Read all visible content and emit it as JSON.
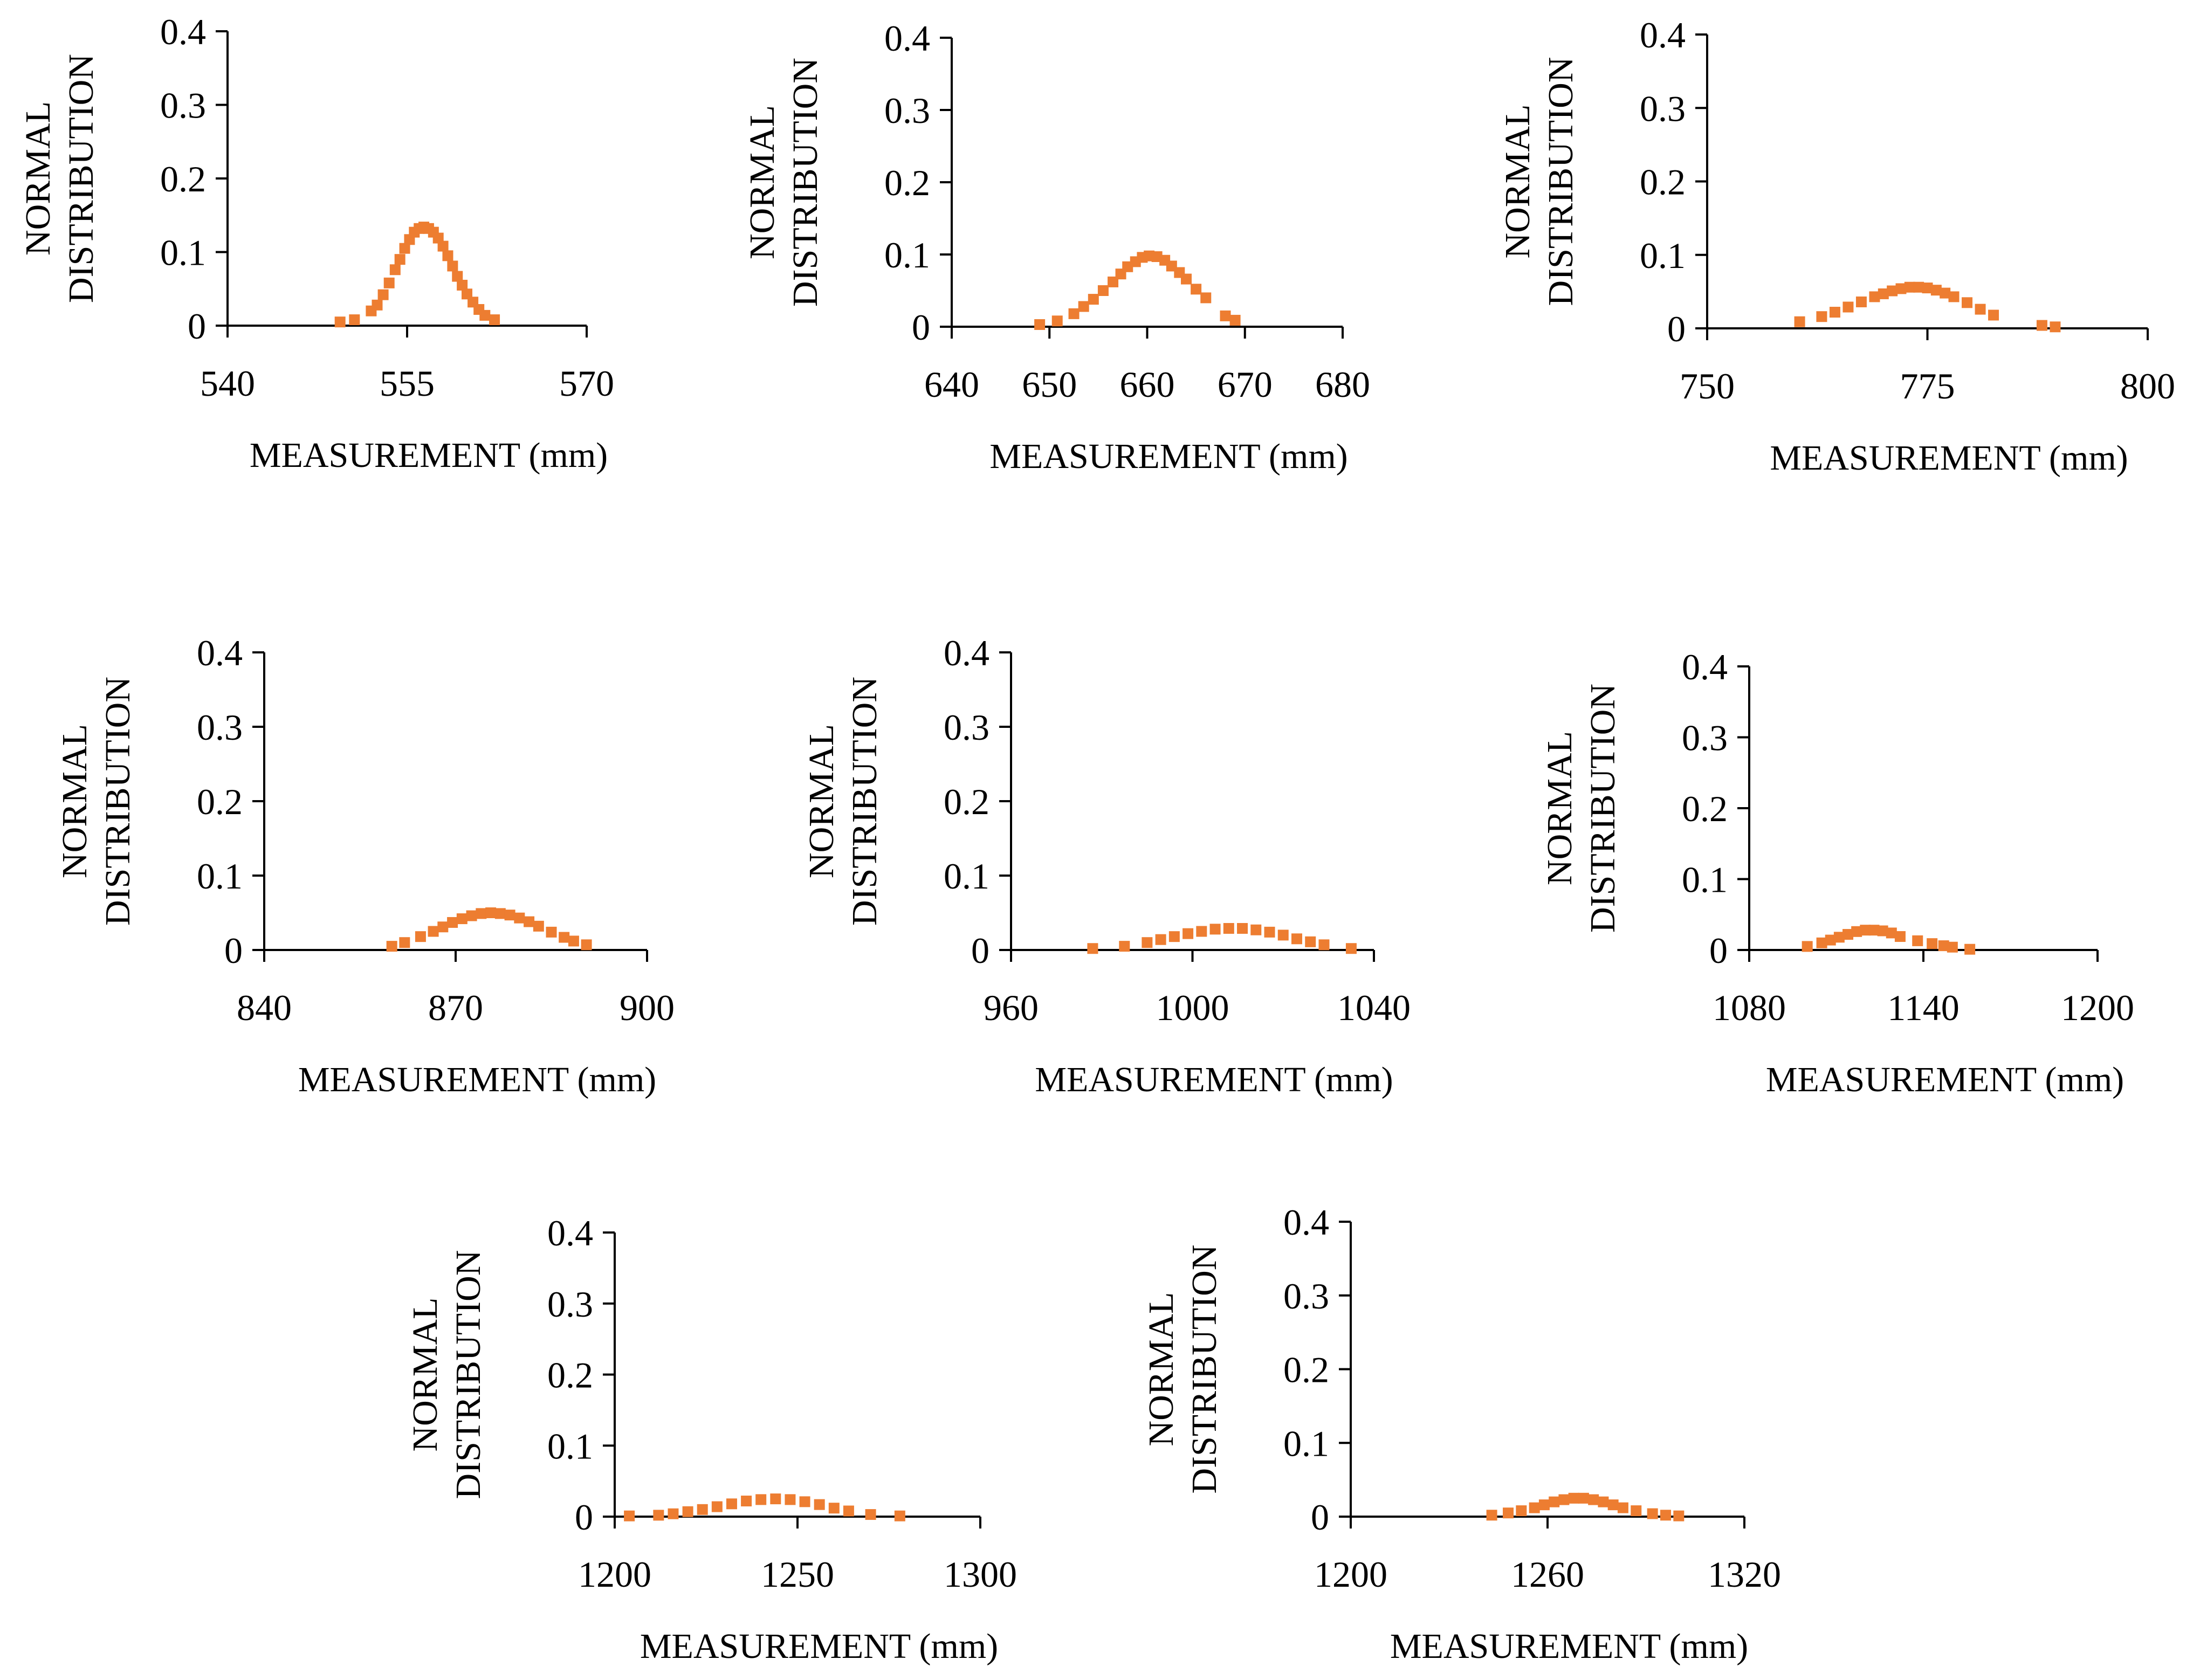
{
  "marker_color": "#ED7D31",
  "chart_data": [
    {
      "type": "scatter",
      "xlabel": "MEASUREMENT (mm)",
      "ylabel": "NORMAL DISTRIBUTION",
      "xlim": [
        540,
        570
      ],
      "ylim": [
        0,
        0.4
      ],
      "xticks": [
        "540",
        "555",
        "570"
      ],
      "yticks": [
        "0",
        "0.1",
        "0.2",
        "0.3",
        "0.4"
      ],
      "series": [
        {
          "x": [
            549.4,
            550.6,
            552.0,
            552.5,
            553.0,
            553.5,
            554.0,
            554.4,
            554.8,
            555.2,
            555.6,
            556.0,
            556.4,
            556.8,
            557.2,
            557.6,
            558.0,
            558.4,
            558.8,
            559.2,
            559.6,
            560.0,
            560.5,
            561.0,
            561.5,
            562.3
          ],
          "y": [
            0.005,
            0.008,
            0.02,
            0.028,
            0.042,
            0.058,
            0.076,
            0.09,
            0.105,
            0.117,
            0.127,
            0.132,
            0.134,
            0.132,
            0.127,
            0.119,
            0.108,
            0.095,
            0.081,
            0.067,
            0.055,
            0.043,
            0.032,
            0.022,
            0.014,
            0.008
          ]
        }
      ]
    },
    {
      "type": "scatter",
      "xlabel": "MEASUREMENT (mm)",
      "ylabel": "NORMAL DISTRIBUTION",
      "xlim": [
        640,
        680
      ],
      "ylim": [
        0,
        0.4
      ],
      "xticks": [
        "640",
        "650",
        "660",
        "670",
        "680"
      ],
      "yticks": [
        "0",
        "0.1",
        "0.2",
        "0.3",
        "0.4"
      ],
      "series": [
        {
          "x": [
            649.0,
            650.8,
            652.5,
            653.5,
            654.5,
            655.5,
            656.5,
            657.3,
            658.0,
            658.8,
            659.5,
            660.2,
            661.0,
            661.8,
            662.5,
            663.3,
            664.0,
            665.0,
            666.0,
            668.0,
            669.0
          ],
          "y": [
            0.003,
            0.008,
            0.018,
            0.028,
            0.038,
            0.05,
            0.062,
            0.073,
            0.083,
            0.09,
            0.096,
            0.098,
            0.097,
            0.092,
            0.084,
            0.075,
            0.066,
            0.052,
            0.04,
            0.015,
            0.009
          ]
        }
      ]
    },
    {
      "type": "scatter",
      "xlabel": "MEASUREMENT (mm)",
      "ylabel": "NORMAL DISTRIBUTION",
      "xlim": [
        750,
        800
      ],
      "ylim": [
        0,
        0.4
      ],
      "xticks": [
        "750",
        "775",
        "800"
      ],
      "yticks": [
        "0",
        "0.1",
        "0.2",
        "0.3",
        "0.4"
      ],
      "series": [
        {
          "x": [
            760.5,
            763.0,
            764.5,
            766.0,
            767.5,
            769.0,
            770.0,
            771.0,
            772.0,
            773.0,
            774.0,
            775.0,
            776.0,
            777.0,
            778.0,
            779.5,
            781.0,
            782.5,
            788.0,
            789.5
          ],
          "y": [
            0.009,
            0.016,
            0.022,
            0.029,
            0.036,
            0.043,
            0.047,
            0.051,
            0.054,
            0.056,
            0.056,
            0.055,
            0.052,
            0.048,
            0.043,
            0.035,
            0.026,
            0.018,
            0.004,
            0.002
          ]
        }
      ]
    },
    {
      "type": "scatter",
      "xlabel": "MEASUREMENT (mm)",
      "ylabel": "NORMAL DISTRIBUTION",
      "xlim": [
        840,
        900
      ],
      "ylim": [
        0,
        0.4
      ],
      "xticks": [
        "840",
        "870",
        "900"
      ],
      "yticks": [
        "0",
        "0.1",
        "0.2",
        "0.3",
        "0.4"
      ],
      "series": [
        {
          "x": [
            860.0,
            862.0,
            864.5,
            866.5,
            868.0,
            869.5,
            871.0,
            872.5,
            874.0,
            875.5,
            877.0,
            878.5,
            880.0,
            881.5,
            883.0,
            885.0,
            887.0,
            888.5,
            890.5
          ],
          "y": [
            0.005,
            0.01,
            0.018,
            0.025,
            0.031,
            0.037,
            0.042,
            0.046,
            0.049,
            0.05,
            0.049,
            0.047,
            0.043,
            0.038,
            0.032,
            0.024,
            0.017,
            0.012,
            0.007
          ]
        }
      ]
    },
    {
      "type": "scatter",
      "xlabel": "MEASUREMENT (mm)",
      "ylabel": "NORMAL DISTRIBUTION",
      "xlim": [
        960,
        1040
      ],
      "ylim": [
        0,
        0.4
      ],
      "xticks": [
        "960",
        "1000",
        "1040"
      ],
      "yticks": [
        "0",
        "0.1",
        "0.2",
        "0.3",
        "0.4"
      ],
      "series": [
        {
          "x": [
            978.0,
            985.0,
            990.0,
            993.0,
            996.0,
            999.0,
            1002.0,
            1005.0,
            1008.0,
            1011.0,
            1014.0,
            1017.0,
            1020.0,
            1023.0,
            1026.0,
            1029.0,
            1035.0
          ],
          "y": [
            0.002,
            0.005,
            0.01,
            0.014,
            0.018,
            0.022,
            0.025,
            0.028,
            0.029,
            0.029,
            0.027,
            0.024,
            0.02,
            0.015,
            0.011,
            0.007,
            0.002
          ]
        }
      ]
    },
    {
      "type": "scatter",
      "xlabel": "MEASUREMENT (mm)",
      "ylabel": "NORMAL DISTRIBUTION",
      "xlim": [
        1080,
        1200
      ],
      "ylim": [
        0,
        0.4
      ],
      "xticks": [
        "1080",
        "1140",
        "1200"
      ],
      "yticks": [
        "0",
        "0.1",
        "0.2",
        "0.3",
        "0.4"
      ],
      "series": [
        {
          "x": [
            1100.0,
            1105.0,
            1108.0,
            1111.0,
            1114.0,
            1117.0,
            1120.0,
            1123.0,
            1126.0,
            1129.0,
            1132.0,
            1138.0,
            1143.0,
            1147.0,
            1150.0,
            1156.0
          ],
          "y": [
            0.005,
            0.01,
            0.014,
            0.018,
            0.022,
            0.026,
            0.028,
            0.028,
            0.027,
            0.024,
            0.019,
            0.013,
            0.009,
            0.006,
            0.004,
            0.001
          ]
        }
      ]
    },
    {
      "type": "scatter",
      "xlabel": "MEASUREMENT (mm)",
      "ylabel": "NORMAL DISTRIBUTION",
      "xlim": [
        1200,
        1300
      ],
      "ylim": [
        0,
        0.4
      ],
      "xticks": [
        "1200",
        "1250",
        "1300"
      ],
      "yticks": [
        "0",
        "0.1",
        "0.2",
        "0.3",
        "0.4"
      ],
      "series": [
        {
          "x": [
            1204.0,
            1212.0,
            1216.0,
            1220.0,
            1224.0,
            1228.0,
            1232.0,
            1236.0,
            1240.0,
            1244.0,
            1248.0,
            1252.0,
            1256.0,
            1260.0,
            1264.0,
            1270.0,
            1278.0
          ],
          "y": [
            0.001,
            0.002,
            0.004,
            0.007,
            0.01,
            0.014,
            0.018,
            0.022,
            0.024,
            0.025,
            0.024,
            0.021,
            0.017,
            0.012,
            0.008,
            0.003,
            0.001
          ]
        }
      ]
    },
    {
      "type": "scatter",
      "xlabel": "MEASUREMENT (mm)",
      "ylabel": "NORMAL DISTRIBUTION",
      "xlim": [
        1200,
        1320
      ],
      "ylim": [
        0,
        0.4
      ],
      "xticks": [
        "1200",
        "1260",
        "1320"
      ],
      "yticks": [
        "0",
        "0.1",
        "0.2",
        "0.3",
        "0.4"
      ],
      "series": [
        {
          "x": [
            1243.0,
            1248.0,
            1252.0,
            1256.0,
            1259.0,
            1262.0,
            1265.0,
            1268.0,
            1271.0,
            1274.0,
            1277.0,
            1280.0,
            1283.0,
            1287.0,
            1292.0,
            1296.0,
            1300.0
          ],
          "y": [
            0.002,
            0.005,
            0.008,
            0.012,
            0.016,
            0.02,
            0.023,
            0.025,
            0.025,
            0.023,
            0.02,
            0.016,
            0.012,
            0.008,
            0.004,
            0.002,
            0.001
          ]
        }
      ]
    }
  ]
}
